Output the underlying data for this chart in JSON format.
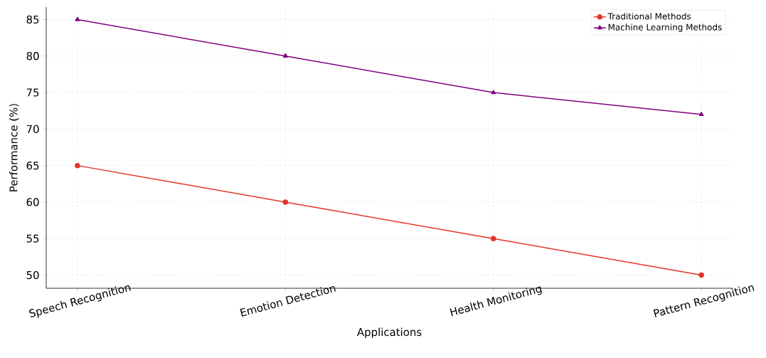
{
  "chart_data": {
    "type": "line",
    "xlabel": "Applications",
    "ylabel": "Performance (%)",
    "categories": [
      "Speech Recognition",
      "Emotion Detection",
      "Health Monitoring",
      "Pattern Recognition"
    ],
    "series": [
      {
        "name": "Traditional Methods",
        "color": "#e3342a",
        "marker": "circle",
        "values": [
          65,
          60,
          55,
          50
        ]
      },
      {
        "name": "Machine Learning Methods",
        "color": "#800080",
        "marker": "triangle",
        "values": [
          85,
          80,
          75,
          72
        ]
      }
    ],
    "ylim": [
      48.2,
      86.7
    ],
    "yticks": [
      50,
      55,
      60,
      65,
      70,
      75,
      80,
      85
    ],
    "grid": true,
    "legend": "top right",
    "line_style": "solid"
  }
}
